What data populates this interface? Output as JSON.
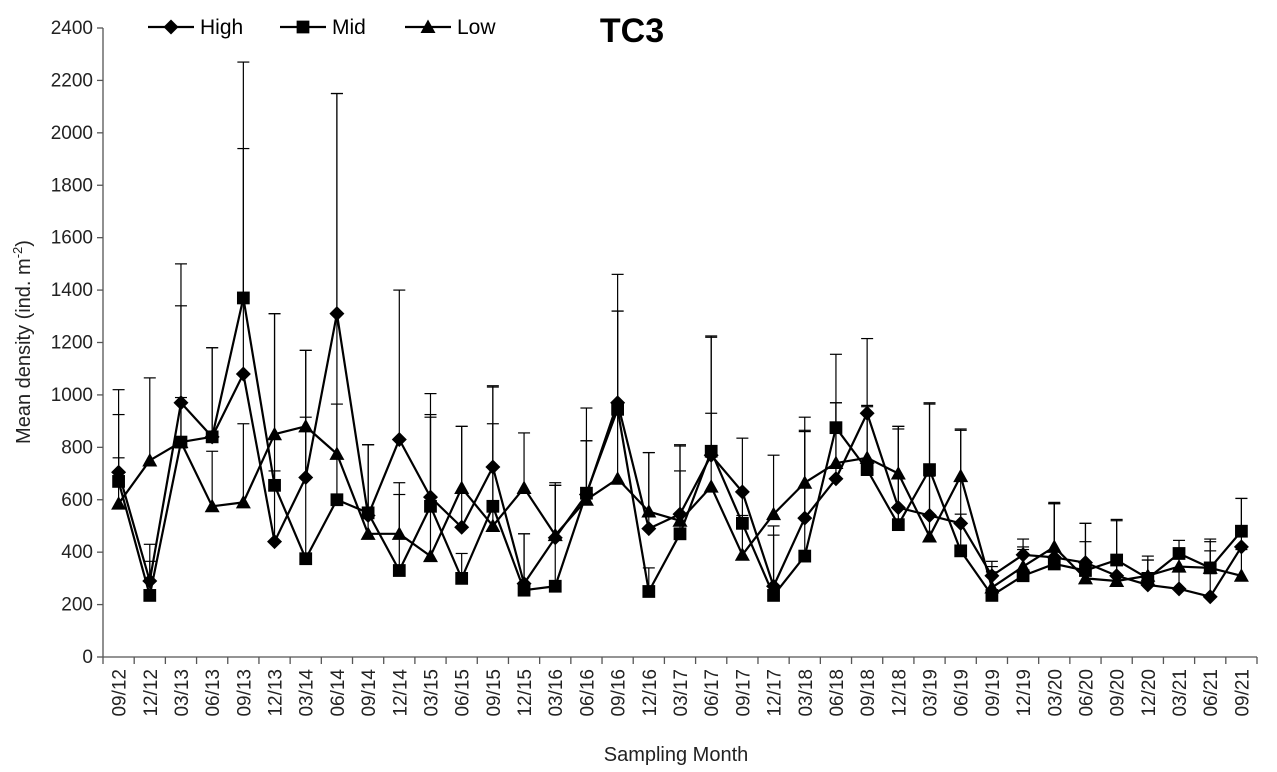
{
  "chart_data": {
    "type": "line",
    "title": "TC3",
    "xlabel": "Sampling Month",
    "ylabel": "Mean density (ind. m",
    "ylabel_sup": "-2",
    "ylabel_end": ")",
    "ylim": [
      0,
      2400
    ],
    "ytick_step": 200,
    "legend_position": "top-left",
    "grid": false,
    "categories": [
      "09/12",
      "12/12",
      "03/13",
      "06/13",
      "09/13",
      "12/13",
      "03/14",
      "06/14",
      "09/14",
      "12/14",
      "03/15",
      "06/15",
      "09/15",
      "12/15",
      "03/16",
      "06/16",
      "09/16",
      "12/16",
      "03/17",
      "06/17",
      "09/17",
      "12/17",
      "03/18",
      "06/18",
      "09/18",
      "12/18",
      "03/19",
      "06/19",
      "09/19",
      "12/19",
      "03/20",
      "06/20",
      "09/20",
      "12/20",
      "03/21",
      "06/21",
      "09/21"
    ],
    "series": [
      {
        "name": "High",
        "marker": "diamond",
        "values": [
          705,
          290,
          970,
          840,
          1080,
          440,
          685,
          1310,
          540,
          830,
          610,
          495,
          725,
          280,
          455,
          620,
          970,
          490,
          545,
          770,
          630,
          270,
          530,
          680,
          930,
          570,
          540,
          510,
          310,
          390,
          380,
          360,
          310,
          275,
          260,
          230,
          420
        ],
        "error": [
          315,
          140,
          530,
          340,
          1190,
          270,
          485,
          840,
          270,
          570,
          395,
          385,
          305,
          190,
          210,
          330,
          490,
          290,
          260,
          450,
          205,
          230,
          330,
          290,
          285,
          310,
          430,
          355,
          55,
          60,
          205,
          150,
          215,
          95,
          75,
          175,
          185
        ]
      },
      {
        "name": "Mid",
        "marker": "square",
        "values": [
          670,
          235,
          820,
          840,
          1370,
          655,
          375,
          600,
          550,
          330,
          575,
          300,
          575,
          255,
          270,
          625,
          945,
          250,
          470,
          785,
          510,
          235,
          385,
          875,
          715,
          505,
          715,
          405,
          235,
          310,
          355,
          330,
          370,
          300,
          395,
          340,
          480
        ],
        "error": [
          90,
          130,
          520,
          340,
          570,
          655,
          540,
          1550,
          260,
          290,
          340,
          95,
          460,
          215,
          385,
          200,
          375,
          90,
          240,
          440,
          120,
          230,
          530,
          280,
          240,
          365,
          250,
          140,
          90,
          110,
          230,
          180,
          150,
          85,
          50,
          110,
          125
        ]
      },
      {
        "name": "Low",
        "marker": "triangle",
        "values": [
          585,
          750,
          820,
          575,
          590,
          850,
          880,
          775,
          470,
          470,
          385,
          645,
          500,
          645,
          465,
          600,
          680,
          555,
          520,
          650,
          390,
          545,
          665,
          740,
          760,
          700,
          460,
          690,
          265,
          345,
          420,
          300,
          290,
          310,
          345,
          340,
          310
        ],
        "error": [
          340,
          315,
          170,
          210,
          300,
          460,
          290,
          190,
          340,
          195,
          540,
          235,
          390,
          210,
          190,
          225,
          640,
          225,
          290,
          280,
          150,
          225,
          200,
          230,
          200,
          180,
          230,
          180,
          80,
          65,
          170,
          140,
          100,
          60,
          65,
          100,
          100
        ]
      }
    ]
  }
}
